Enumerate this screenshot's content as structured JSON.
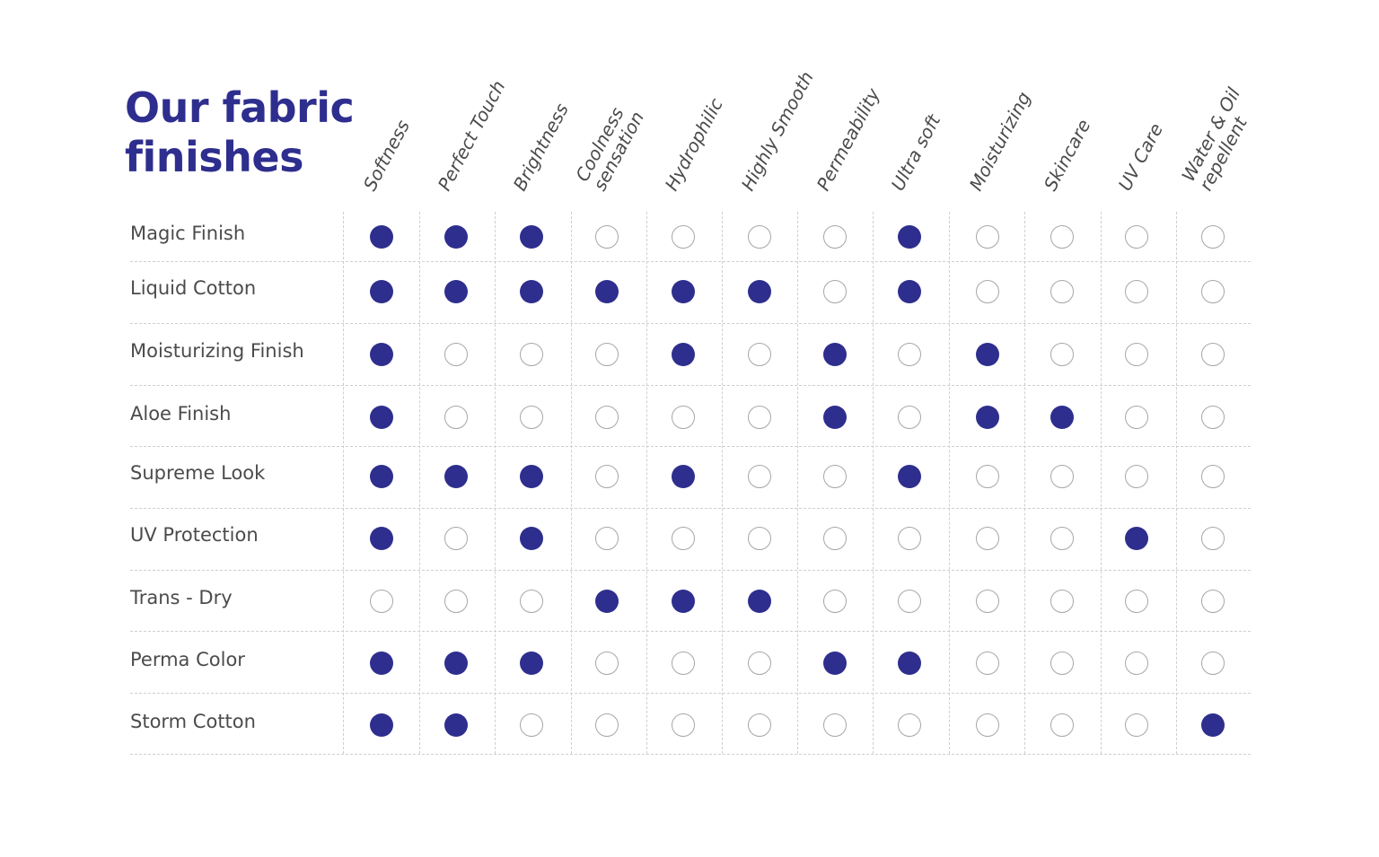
{
  "title": {
    "line1": "Our fabric",
    "line2": "finishes"
  },
  "columns": [
    "Softness",
    "Perfect Touch",
    "Brightness",
    "Coolness sensation",
    "Hydrophilic",
    "Highly Smooth",
    "Permeability",
    "Ultra soft",
    "Moisturizing",
    "Skincare",
    "UV Care",
    "Water & Oil repellent"
  ],
  "column_lines": {
    "3": [
      "Coolness",
      "sensation"
    ],
    "11": [
      "Water & Oil",
      "repellent"
    ]
  },
  "rows": [
    {
      "label": "Magic Finish",
      "values": [
        1,
        1,
        1,
        0,
        0,
        0,
        0,
        1,
        0,
        0,
        0,
        0
      ]
    },
    {
      "label": "Liquid Cotton",
      "values": [
        1,
        1,
        1,
        1,
        1,
        1,
        0,
        1,
        0,
        0,
        0,
        0
      ]
    },
    {
      "label": "Moisturizing Finish",
      "values": [
        1,
        0,
        0,
        0,
        1,
        0,
        1,
        0,
        1,
        0,
        0,
        0
      ]
    },
    {
      "label": "Aloe Finish",
      "values": [
        1,
        0,
        0,
        0,
        0,
        0,
        1,
        0,
        1,
        1,
        0,
        0
      ]
    },
    {
      "label": "Supreme Look",
      "values": [
        1,
        1,
        1,
        0,
        1,
        0,
        0,
        1,
        0,
        0,
        0,
        0
      ]
    },
    {
      "label": "UV Protection",
      "values": [
        1,
        0,
        1,
        0,
        0,
        0,
        0,
        0,
        0,
        0,
        1,
        0
      ]
    },
    {
      "label": "Trans - Dry",
      "values": [
        0,
        0,
        0,
        1,
        1,
        1,
        0,
        0,
        0,
        0,
        0,
        0
      ]
    },
    {
      "label": "Perma Color",
      "values": [
        1,
        1,
        1,
        0,
        0,
        0,
        1,
        1,
        0,
        0,
        0,
        0
      ]
    },
    {
      "label": "Storm Cotton",
      "values": [
        1,
        1,
        0,
        0,
        0,
        0,
        0,
        0,
        0,
        0,
        0,
        1
      ]
    }
  ],
  "colors": {
    "filled": "#2e2e8e",
    "empty_border": "#a7a7a7",
    "grid": "#cfcfcf",
    "title": "#2e2e8e"
  }
}
